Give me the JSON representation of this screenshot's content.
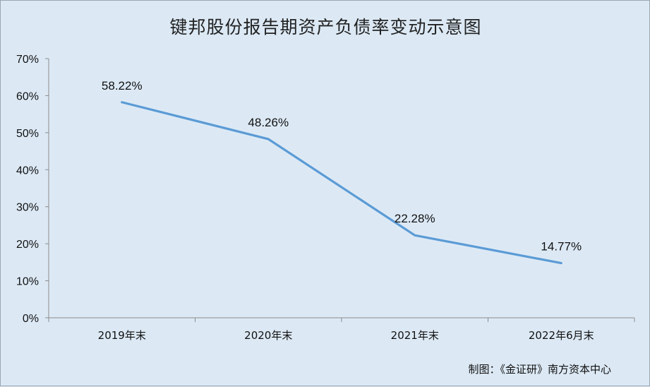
{
  "chart_data": {
    "type": "line",
    "title": "键邦股份报告期资产负债率变动示意图",
    "categories": [
      "2019年末",
      "2020年末",
      "2021年末",
      "2022年6月末"
    ],
    "series": [
      {
        "values": [
          58.22,
          48.26,
          22.28,
          14.77
        ],
        "labels": [
          "58.22%",
          "48.26%",
          "22.28%",
          "14.77%"
        ],
        "color": "#5b9bd5"
      }
    ],
    "ylim": [
      0,
      70
    ],
    "yticks": [
      "0%",
      "10%",
      "20%",
      "30%",
      "40%",
      "50%",
      "60%",
      "70%"
    ],
    "grid": false,
    "legend": "none"
  },
  "source_note": "制图：《金证研》南方资本中心"
}
